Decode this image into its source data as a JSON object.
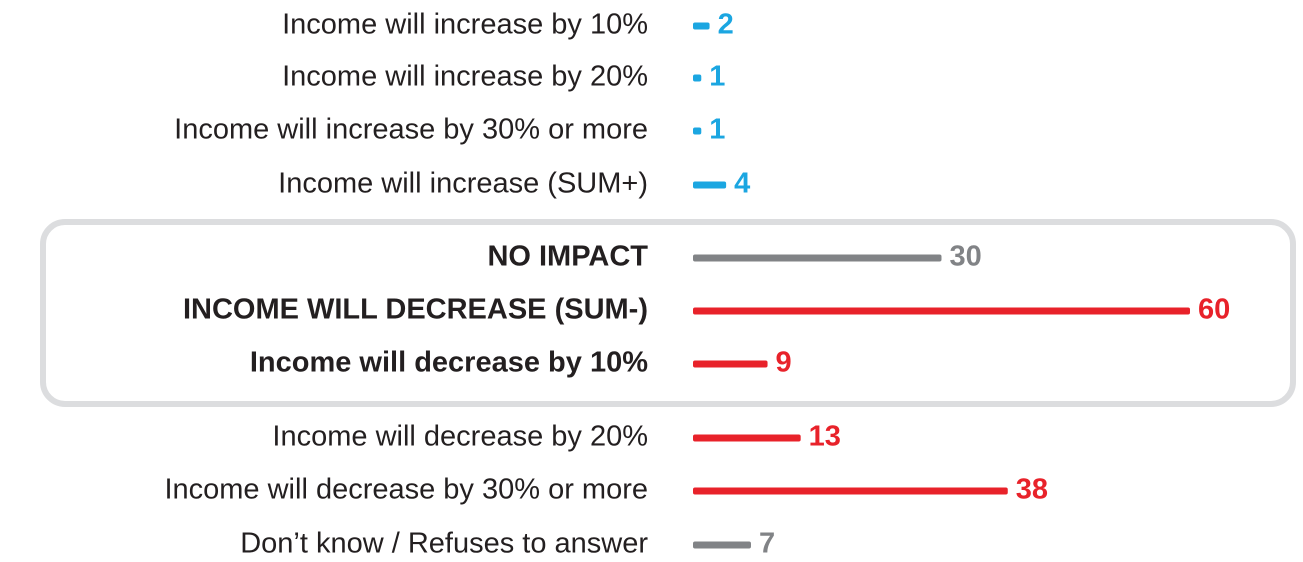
{
  "chart_data": {
    "type": "bar",
    "categories": [
      "Income will increase by 10%",
      "Income will increase by 20%",
      "Income will increase by 30% or more",
      "Income will increase (SUM+)",
      "NO IMPACT",
      "INCOME WILL DECREASE (SUM-)",
      "Income will decrease by 10%",
      "Income will decrease by 20%",
      "Income will decrease by 30% or more",
      "Don’t know / Refuses to answer"
    ],
    "values": [
      2,
      1,
      1,
      4,
      30,
      60,
      9,
      13,
      38,
      7
    ],
    "colors": [
      "#1ba6e1",
      "#1ba6e1",
      "#1ba6e1",
      "#1ba6e1",
      "#818386",
      "#e8222a",
      "#e8222a",
      "#e8222a",
      "#e8222a",
      "#818386"
    ]
  }
}
